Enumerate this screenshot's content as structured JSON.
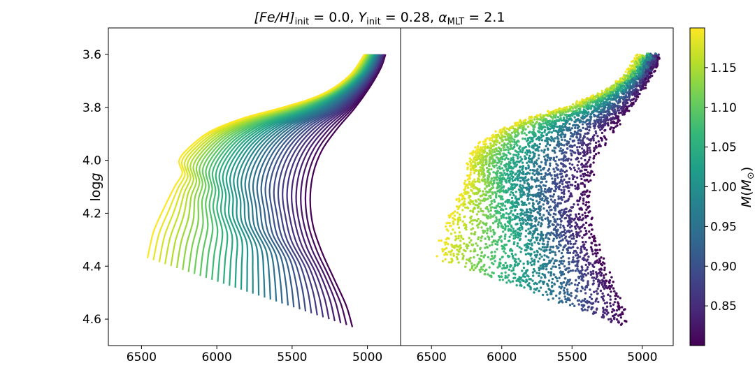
{
  "title": {
    "fe_h_symbol": "[Fe/H]",
    "fe_h_sub": "init",
    "fe_h_value": " = 0.0, ",
    "y_symbol": "Y",
    "y_sub": "init",
    "y_value": " = 0.28, ",
    "alpha_symbol": "α",
    "alpha_sub": "MLT",
    "alpha_value": " = 2.1"
  },
  "colors": {
    "viridis": [
      "#440154",
      "#482878",
      "#3e4989",
      "#31688e",
      "#26828e",
      "#1f9e89",
      "#35b779",
      "#6ece58",
      "#b5de2b",
      "#fde725"
    ]
  },
  "chart_data": [
    {
      "type": "line",
      "panel": "left",
      "description_of_series": "evolutionary tracks, one per mass",
      "x_axis": {
        "ticks": [
          6500,
          6000,
          5500,
          5000
        ],
        "tick_labels": [
          "6500",
          "6000",
          "5500",
          "5000"
        ],
        "lim": [
          6720,
          4780
        ],
        "inverted": true
      },
      "y_axis": {
        "ticks": [
          3.6,
          3.8,
          4.0,
          4.2,
          4.4,
          4.6
        ],
        "tick_labels": [
          "3.6",
          "3.8",
          "4.0",
          "4.2",
          "4.4",
          "4.6"
        ],
        "lim": [
          3.5,
          4.7
        ],
        "inverted": true,
        "label_main": "log",
        "label_var": "g"
      },
      "mass_range": [
        0.8,
        1.2
      ],
      "track_count": 36,
      "track_low_mass": {
        "mass": 0.8,
        "teff": [
          5100,
          5140,
          5220,
          5300,
          5360,
          5380,
          5360,
          5300,
          5200,
          5080,
          4980,
          4910,
          4880
        ],
        "logg": [
          4.63,
          4.55,
          4.45,
          4.35,
          4.25,
          4.15,
          4.05,
          3.96,
          3.88,
          3.8,
          3.72,
          3.65,
          3.6
        ]
      },
      "track_high_mass": {
        "mass": 1.2,
        "teff": [
          6460,
          6420,
          6350,
          6280,
          6230,
          6250,
          6180,
          6040,
          5820,
          5560,
          5300,
          5120,
          5020
        ],
        "logg": [
          4.37,
          4.27,
          4.18,
          4.1,
          4.05,
          4.0,
          3.95,
          3.89,
          3.84,
          3.8,
          3.75,
          3.68,
          3.6
        ]
      }
    },
    {
      "type": "scatter",
      "panel": "right",
      "description_of_series": "sampled models, color = mass",
      "x_axis": {
        "ticks": [
          6500,
          6000,
          5500,
          5000
        ],
        "tick_labels": [
          "6500",
          "6000",
          "5500",
          "5000"
        ],
        "lim": [
          6720,
          4780
        ],
        "inverted": true
      },
      "y_axis": {
        "lim": [
          3.5,
          4.7
        ],
        "inverted": true
      },
      "point_count": 5000
    }
  ],
  "colorbar": {
    "label_var": "M",
    "label_unit": "M",
    "label_sub": "⊙",
    "range": [
      0.8,
      1.2
    ],
    "ticks": [
      0.85,
      0.9,
      0.95,
      1.0,
      1.05,
      1.1,
      1.15
    ],
    "tick_labels": [
      "0.85",
      "0.90",
      "0.95",
      "1.00",
      "1.05",
      "1.10",
      "1.15"
    ]
  }
}
